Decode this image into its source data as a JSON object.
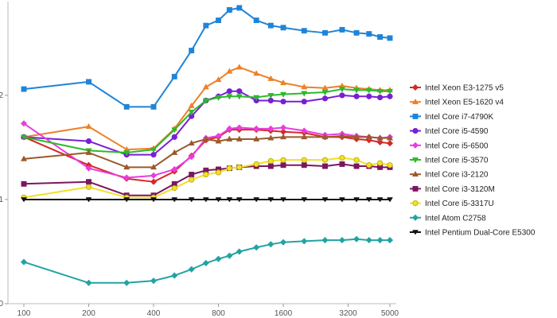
{
  "chart_data": {
    "type": "line",
    "title": "",
    "xlabel": "",
    "ylabel": "",
    "x_scale": "log",
    "xlim": [
      100,
      5000
    ],
    "ylim": [
      0,
      2.9
    ],
    "x_ticks": [
      100,
      200,
      400,
      800,
      1600,
      3200,
      5000
    ],
    "x_tick_labels": [
      "100",
      "200",
      "400",
      "800",
      "1600",
      "3200",
      "5000"
    ],
    "y_ticks": [
      0,
      1,
      2
    ],
    "y_tick_labels": [
      "0",
      "1",
      "2"
    ],
    "legend_position": "right",
    "x": [
      100,
      200,
      300,
      400,
      500,
      600,
      700,
      800,
      900,
      1000,
      1200,
      1400,
      1600,
      2000,
      2500,
      3000,
      3500,
      4000,
      4500,
      5000
    ],
    "series": [
      {
        "name": "Intel Xeon E3-1275 v5",
        "color": "#d62728",
        "marker": "diamond",
        "values": [
          1.6,
          1.33,
          1.2,
          1.17,
          1.27,
          1.42,
          1.57,
          1.6,
          1.67,
          1.67,
          1.67,
          1.66,
          1.65,
          1.64,
          1.6,
          1.6,
          1.58,
          1.57,
          1.55,
          1.54
        ]
      },
      {
        "name": "Intel Xeon E5-1620 v4",
        "color": "#ee8025",
        "marker": "triangle",
        "values": [
          1.6,
          1.7,
          1.48,
          1.49,
          1.68,
          1.9,
          2.08,
          2.15,
          2.23,
          2.27,
          2.21,
          2.16,
          2.12,
          2.08,
          2.07,
          2.09,
          2.07,
          2.06,
          2.05,
          2.05
        ]
      },
      {
        "name": "Intel Core i7-4790K",
        "color": "#1f84d8",
        "marker": "square",
        "values": [
          2.06,
          2.13,
          1.89,
          1.89,
          2.18,
          2.43,
          2.67,
          2.72,
          2.82,
          2.84,
          2.72,
          2.67,
          2.65,
          2.62,
          2.6,
          2.63,
          2.6,
          2.59,
          2.56,
          2.55
        ]
      },
      {
        "name": "Intel Core i5-4590",
        "color": "#7a1fd4",
        "marker": "circle",
        "values": [
          1.6,
          1.56,
          1.43,
          1.43,
          1.6,
          1.8,
          1.95,
          1.99,
          2.04,
          2.04,
          1.95,
          1.95,
          1.94,
          1.94,
          1.97,
          2.0,
          1.99,
          1.99,
          1.98,
          1.99
        ]
      },
      {
        "name": "Intel Core i5-6500",
        "color": "#e83de0",
        "marker": "diamond",
        "values": [
          1.73,
          1.3,
          1.21,
          1.23,
          1.29,
          1.41,
          1.59,
          1.61,
          1.68,
          1.69,
          1.68,
          1.68,
          1.69,
          1.66,
          1.62,
          1.63,
          1.61,
          1.6,
          1.59,
          1.6
        ]
      },
      {
        "name": "Intel Core i5-3570",
        "color": "#2cba2c",
        "marker": "triangle-down",
        "values": [
          1.6,
          1.47,
          1.45,
          1.48,
          1.67,
          1.84,
          1.95,
          1.98,
          1.99,
          1.99,
          1.98,
          2.0,
          2.01,
          2.02,
          2.03,
          2.06,
          2.05,
          2.05,
          2.04,
          2.04
        ]
      },
      {
        "name": "Intel Core i3-2120",
        "color": "#9a5a2a",
        "marker": "triangle",
        "values": [
          1.39,
          1.45,
          1.31,
          1.31,
          1.45,
          1.54,
          1.58,
          1.56,
          1.58,
          1.58,
          1.58,
          1.59,
          1.6,
          1.6,
          1.6,
          1.61,
          1.6,
          1.6,
          1.59,
          1.59
        ]
      },
      {
        "name": "Intel Core i3-3120M",
        "color": "#7b1660",
        "marker": "square",
        "values": [
          1.15,
          1.17,
          1.04,
          1.04,
          1.15,
          1.24,
          1.28,
          1.29,
          1.3,
          1.31,
          1.32,
          1.32,
          1.33,
          1.33,
          1.32,
          1.34,
          1.32,
          1.32,
          1.31,
          1.31
        ]
      },
      {
        "name": "Intel Core i5-3317U",
        "color": "#f0e02a",
        "marker": "circle",
        "values": [
          1.02,
          1.12,
          1.02,
          1.02,
          1.11,
          1.19,
          1.24,
          1.26,
          1.3,
          1.31,
          1.34,
          1.37,
          1.38,
          1.38,
          1.38,
          1.4,
          1.38,
          1.33,
          1.35,
          1.33
        ]
      },
      {
        "name": "Intel Atom C2758",
        "color": "#22a3a3",
        "marker": "diamond",
        "values": [
          0.4,
          0.2,
          0.2,
          0.22,
          0.27,
          0.33,
          0.39,
          0.43,
          0.46,
          0.5,
          0.54,
          0.57,
          0.59,
          0.6,
          0.61,
          0.61,
          0.62,
          0.61,
          0.61,
          0.61
        ]
      },
      {
        "name": "Intel Pentium Dual-Core E5300",
        "color": "#111111",
        "marker": "arrow",
        "values": [
          1.0,
          1.0,
          1.0,
          1.0,
          1.0,
          1.0,
          1.0,
          1.0,
          1.0,
          1.0,
          1.0,
          1.0,
          1.0,
          1.0,
          1.0,
          1.0,
          1.0,
          1.0,
          1.0,
          1.0
        ]
      }
    ]
  }
}
